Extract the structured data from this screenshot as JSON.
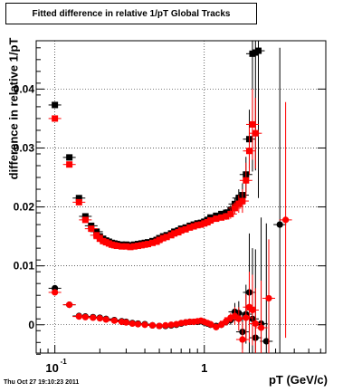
{
  "chart_data": {
    "type": "scatter",
    "title": "Fitted difference in relative 1/pT  Global Tracks",
    "xlabel": "pT (GeV/c)",
    "ylabel": "difference in relative 1/pT",
    "xscale": "log",
    "xlim": [
      0.075,
      6.5
    ],
    "ylim": [
      -0.0048,
      0.0482
    ],
    "grid": true,
    "x_ticks": [
      {
        "value": 0.1,
        "base": "10",
        "exp": "-1"
      },
      {
        "value": 1,
        "label": "1"
      }
    ],
    "y_ticks": [
      {
        "value": 0,
        "label": "0"
      },
      {
        "value": 0.01,
        "label": "0.01"
      },
      {
        "value": 0.02,
        "label": "0.02"
      },
      {
        "value": 0.03,
        "label": "0.03"
      },
      {
        "value": 0.04,
        "label": "0.04"
      }
    ],
    "series": [
      {
        "marker": "square",
        "color": "#000000",
        "x": [
          0.1,
          0.125,
          0.145,
          0.16,
          0.175,
          0.19,
          0.2,
          0.21,
          0.22,
          0.23,
          0.24,
          0.25,
          0.26,
          0.28,
          0.3,
          0.32,
          0.34,
          0.36,
          0.38,
          0.4,
          0.42,
          0.45,
          0.48,
          0.5,
          0.53,
          0.56,
          0.6,
          0.63,
          0.67,
          0.7,
          0.75,
          0.8,
          0.85,
          0.9,
          0.95,
          1.0,
          1.05,
          1.1,
          1.2,
          1.3,
          1.4,
          1.5,
          1.6,
          1.7,
          1.8,
          1.9,
          2.0,
          2.1,
          2.2,
          2.3
        ],
        "y": [
          0.0373,
          0.0284,
          0.0215,
          0.0184,
          0.0168,
          0.0158,
          0.015,
          0.0146,
          0.0143,
          0.0141,
          0.0139,
          0.0138,
          0.0137,
          0.0136,
          0.0136,
          0.0135,
          0.0136,
          0.0137,
          0.0138,
          0.0139,
          0.014,
          0.0142,
          0.0144,
          0.0147,
          0.015,
          0.0152,
          0.0155,
          0.0158,
          0.016,
          0.0163,
          0.0165,
          0.0168,
          0.017,
          0.0172,
          0.0173,
          0.0175,
          0.0178,
          0.0182,
          0.0185,
          0.0188,
          0.019,
          0.0195,
          0.0205,
          0.0215,
          0.022,
          0.0255,
          0.0315,
          0.046,
          0.0462,
          0.0465
        ],
        "yerr": [
          0.0004,
          0.0003,
          0.0003,
          0.0003,
          0.0002,
          0.0002,
          0.0002,
          0.0002,
          0.0002,
          0.0002,
          0.0002,
          0.0002,
          0.0002,
          0.0002,
          0.0002,
          0.0002,
          0.0002,
          0.0002,
          0.0002,
          0.0002,
          0.0002,
          0.0002,
          0.0002,
          0.0002,
          0.0002,
          0.0002,
          0.0002,
          0.0002,
          0.0002,
          0.0002,
          0.0002,
          0.0002,
          0.0002,
          0.0002,
          0.0003,
          0.0003,
          0.0003,
          0.0003,
          0.0004,
          0.0005,
          0.0006,
          0.0008,
          0.001,
          0.0015,
          0.002,
          0.003,
          0.005,
          0.02,
          0.02,
          0.025
        ]
      },
      {
        "marker": "square",
        "color": "#ff0000",
        "x": [
          0.1,
          0.125,
          0.145,
          0.16,
          0.175,
          0.19,
          0.2,
          0.21,
          0.22,
          0.23,
          0.24,
          0.25,
          0.26,
          0.28,
          0.3,
          0.32,
          0.34,
          0.36,
          0.38,
          0.4,
          0.42,
          0.45,
          0.48,
          0.5,
          0.53,
          0.56,
          0.6,
          0.63,
          0.67,
          0.7,
          0.75,
          0.8,
          0.85,
          0.9,
          0.95,
          1.0,
          1.05,
          1.1,
          1.2,
          1.3,
          1.4,
          1.5,
          1.6,
          1.7,
          1.8,
          1.9,
          2.0,
          2.1,
          2.2
        ],
        "y": [
          0.035,
          0.0272,
          0.0208,
          0.0178,
          0.0163,
          0.0152,
          0.0146,
          0.0142,
          0.014,
          0.0138,
          0.0136,
          0.0135,
          0.0134,
          0.0133,
          0.0133,
          0.0132,
          0.0133,
          0.0134,
          0.0135,
          0.0136,
          0.0137,
          0.0139,
          0.0141,
          0.0144,
          0.0147,
          0.0149,
          0.0152,
          0.0155,
          0.0157,
          0.016,
          0.0162,
          0.0165,
          0.0167,
          0.0169,
          0.017,
          0.0172,
          0.0174,
          0.0177,
          0.018,
          0.0182,
          0.0184,
          0.0188,
          0.0198,
          0.0205,
          0.021,
          0.0245,
          0.0295,
          0.034,
          0.0325
        ],
        "yerr": [
          0.0004,
          0.0003,
          0.0003,
          0.0003,
          0.0002,
          0.0002,
          0.0002,
          0.0002,
          0.0002,
          0.0002,
          0.0002,
          0.0002,
          0.0002,
          0.0002,
          0.0002,
          0.0002,
          0.0002,
          0.0002,
          0.0002,
          0.0002,
          0.0002,
          0.0002,
          0.0002,
          0.0002,
          0.0002,
          0.0002,
          0.0002,
          0.0002,
          0.0002,
          0.0002,
          0.0002,
          0.0002,
          0.0002,
          0.0002,
          0.0003,
          0.0003,
          0.0003,
          0.0003,
          0.0004,
          0.0005,
          0.0006,
          0.0008,
          0.001,
          0.0015,
          0.002,
          0.003,
          0.004,
          0.006,
          0.006
        ]
      },
      {
        "marker": "circle",
        "color": "#000000",
        "x": [
          0.1,
          0.125,
          0.145,
          0.16,
          0.18,
          0.2,
          0.22,
          0.25,
          0.28,
          0.3,
          0.33,
          0.36,
          0.4,
          0.45,
          0.5,
          0.55,
          0.6,
          0.65,
          0.7,
          0.75,
          0.8,
          0.85,
          0.9,
          0.95,
          1.0,
          1.05,
          1.1,
          1.2,
          1.3,
          1.4,
          1.5,
          1.6,
          1.7,
          1.8,
          1.9,
          2.0,
          2.1,
          2.2,
          2.4,
          2.6,
          3.2
        ],
        "y": [
          0.0062,
          0.0034,
          0.0015,
          0.0014,
          0.0013,
          0.0012,
          0.001,
          0.0008,
          0.0006,
          0.0005,
          0.0003,
          0.0002,
          0.0001,
          -0.0001,
          -0.0002,
          -0.0002,
          -0.0001,
          0.0,
          0.0002,
          0.0004,
          0.0005,
          0.0005,
          0.0005,
          0.0006,
          0.0004,
          0.0002,
          0.0,
          -0.0002,
          0.0,
          0.0005,
          0.0008,
          0.0022,
          0.002,
          -0.0012,
          0.0018,
          0.0055,
          0.001,
          -0.0022,
          0.0002,
          -0.0028,
          0.017
        ],
        "yerr": [
          0.0003,
          0.0003,
          0.0002,
          0.0002,
          0.0002,
          0.0002,
          0.0002,
          0.0002,
          0.0002,
          0.0002,
          0.0002,
          0.0002,
          0.0002,
          0.0002,
          0.0002,
          0.0002,
          0.0002,
          0.0002,
          0.0002,
          0.0002,
          0.0002,
          0.0002,
          0.0002,
          0.0002,
          0.0003,
          0.0003,
          0.0003,
          0.0004,
          0.0005,
          0.0006,
          0.0008,
          0.0015,
          0.002,
          0.003,
          0.005,
          0.01,
          0.012,
          0.015,
          0.018,
          0.02,
          0.03
        ]
      },
      {
        "marker": "circle",
        "color": "#ff0000",
        "x": [
          0.1,
          0.125,
          0.145,
          0.16,
          0.18,
          0.2,
          0.22,
          0.25,
          0.28,
          0.3,
          0.33,
          0.36,
          0.4,
          0.45,
          0.5,
          0.55,
          0.6,
          0.65,
          0.7,
          0.75,
          0.8,
          0.85,
          0.9,
          0.95,
          1.0,
          1.05,
          1.1,
          1.2,
          1.3,
          1.4,
          1.5,
          1.6,
          1.7,
          1.8,
          1.9,
          2.0,
          2.1,
          2.2,
          2.4,
          2.7,
          3.5
        ],
        "y": [
          0.0055,
          0.0034,
          0.0014,
          0.0013,
          0.0012,
          0.0011,
          0.0009,
          0.0007,
          0.0005,
          0.0004,
          0.0002,
          0.0001,
          0.0,
          -0.0001,
          -0.0002,
          -0.0001,
          0.0,
          0.0001,
          0.0003,
          0.0004,
          0.0005,
          0.0005,
          0.0006,
          0.0007,
          0.0005,
          0.0003,
          0.0001,
          -0.0004,
          0.0,
          0.0006,
          0.0012,
          0.0015,
          0.001,
          -0.0025,
          0.0012,
          0.003,
          0.0025,
          0.0002,
          -0.0005,
          0.0045,
          0.0178
        ],
        "yerr": [
          0.0003,
          0.0003,
          0.0002,
          0.0002,
          0.0002,
          0.0002,
          0.0002,
          0.0002,
          0.0002,
          0.0002,
          0.0002,
          0.0002,
          0.0002,
          0.0002,
          0.0002,
          0.0002,
          0.0002,
          0.0002,
          0.0002,
          0.0002,
          0.0002,
          0.0002,
          0.0002,
          0.0002,
          0.0003,
          0.0003,
          0.0003,
          0.0004,
          0.0005,
          0.0006,
          0.0008,
          0.0015,
          0.002,
          0.003,
          0.004,
          0.006,
          0.006,
          0.006,
          0.008,
          0.01,
          0.02
        ]
      }
    ]
  },
  "footer": {
    "timestamp": "Thu Oct 27 19:10:23 2011"
  }
}
